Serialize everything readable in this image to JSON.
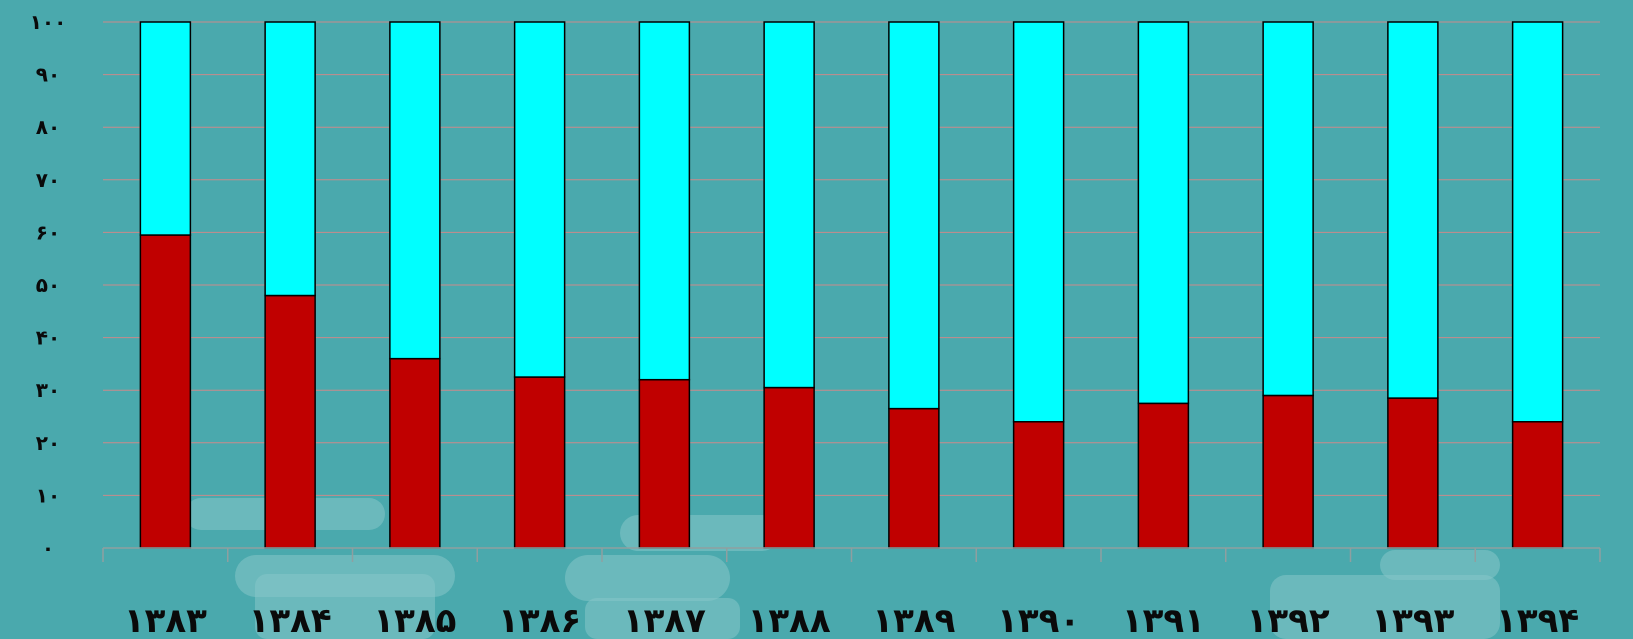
{
  "chart_data": {
    "type": "bar",
    "stacked": true,
    "percent": true,
    "categories": [
      "۱۳۸۳",
      "۱۳۸۴",
      "۱۳۸۵",
      "۱۳۸۶",
      "۱۳۸۷",
      "۱۳۸۸",
      "۱۳۸۹",
      "۱۳۹۰",
      "۱۳۹۱",
      "۱۳۹۲",
      "۱۳۹۳",
      "۱۳۹۴"
    ],
    "series": [
      {
        "color": "#c00000",
        "values": [
          59.5,
          48,
          36,
          32.5,
          32,
          30.5,
          26.5,
          24,
          27.5,
          29,
          28.5,
          24
        ]
      },
      {
        "color": "#00ffff",
        "values": [
          40.5,
          52,
          64,
          67.5,
          68,
          69.5,
          73.5,
          76,
          72.5,
          71,
          71.5,
          76
        ]
      }
    ],
    "ylim": [
      0,
      100
    ],
    "yticks": [
      0,
      10,
      20,
      30,
      40,
      50,
      60,
      70,
      80,
      90,
      100
    ],
    "ytick_labels": [
      "۰",
      "۱۰",
      "۲۰",
      "۳۰",
      "۴۰",
      "۵۰",
      "۶۰",
      "۷۰",
      "۸۰",
      "۹۰",
      "۱۰۰"
    ],
    "grid": true,
    "legend": "none",
    "title": "",
    "xlabel": "",
    "ylabel": ""
  }
}
